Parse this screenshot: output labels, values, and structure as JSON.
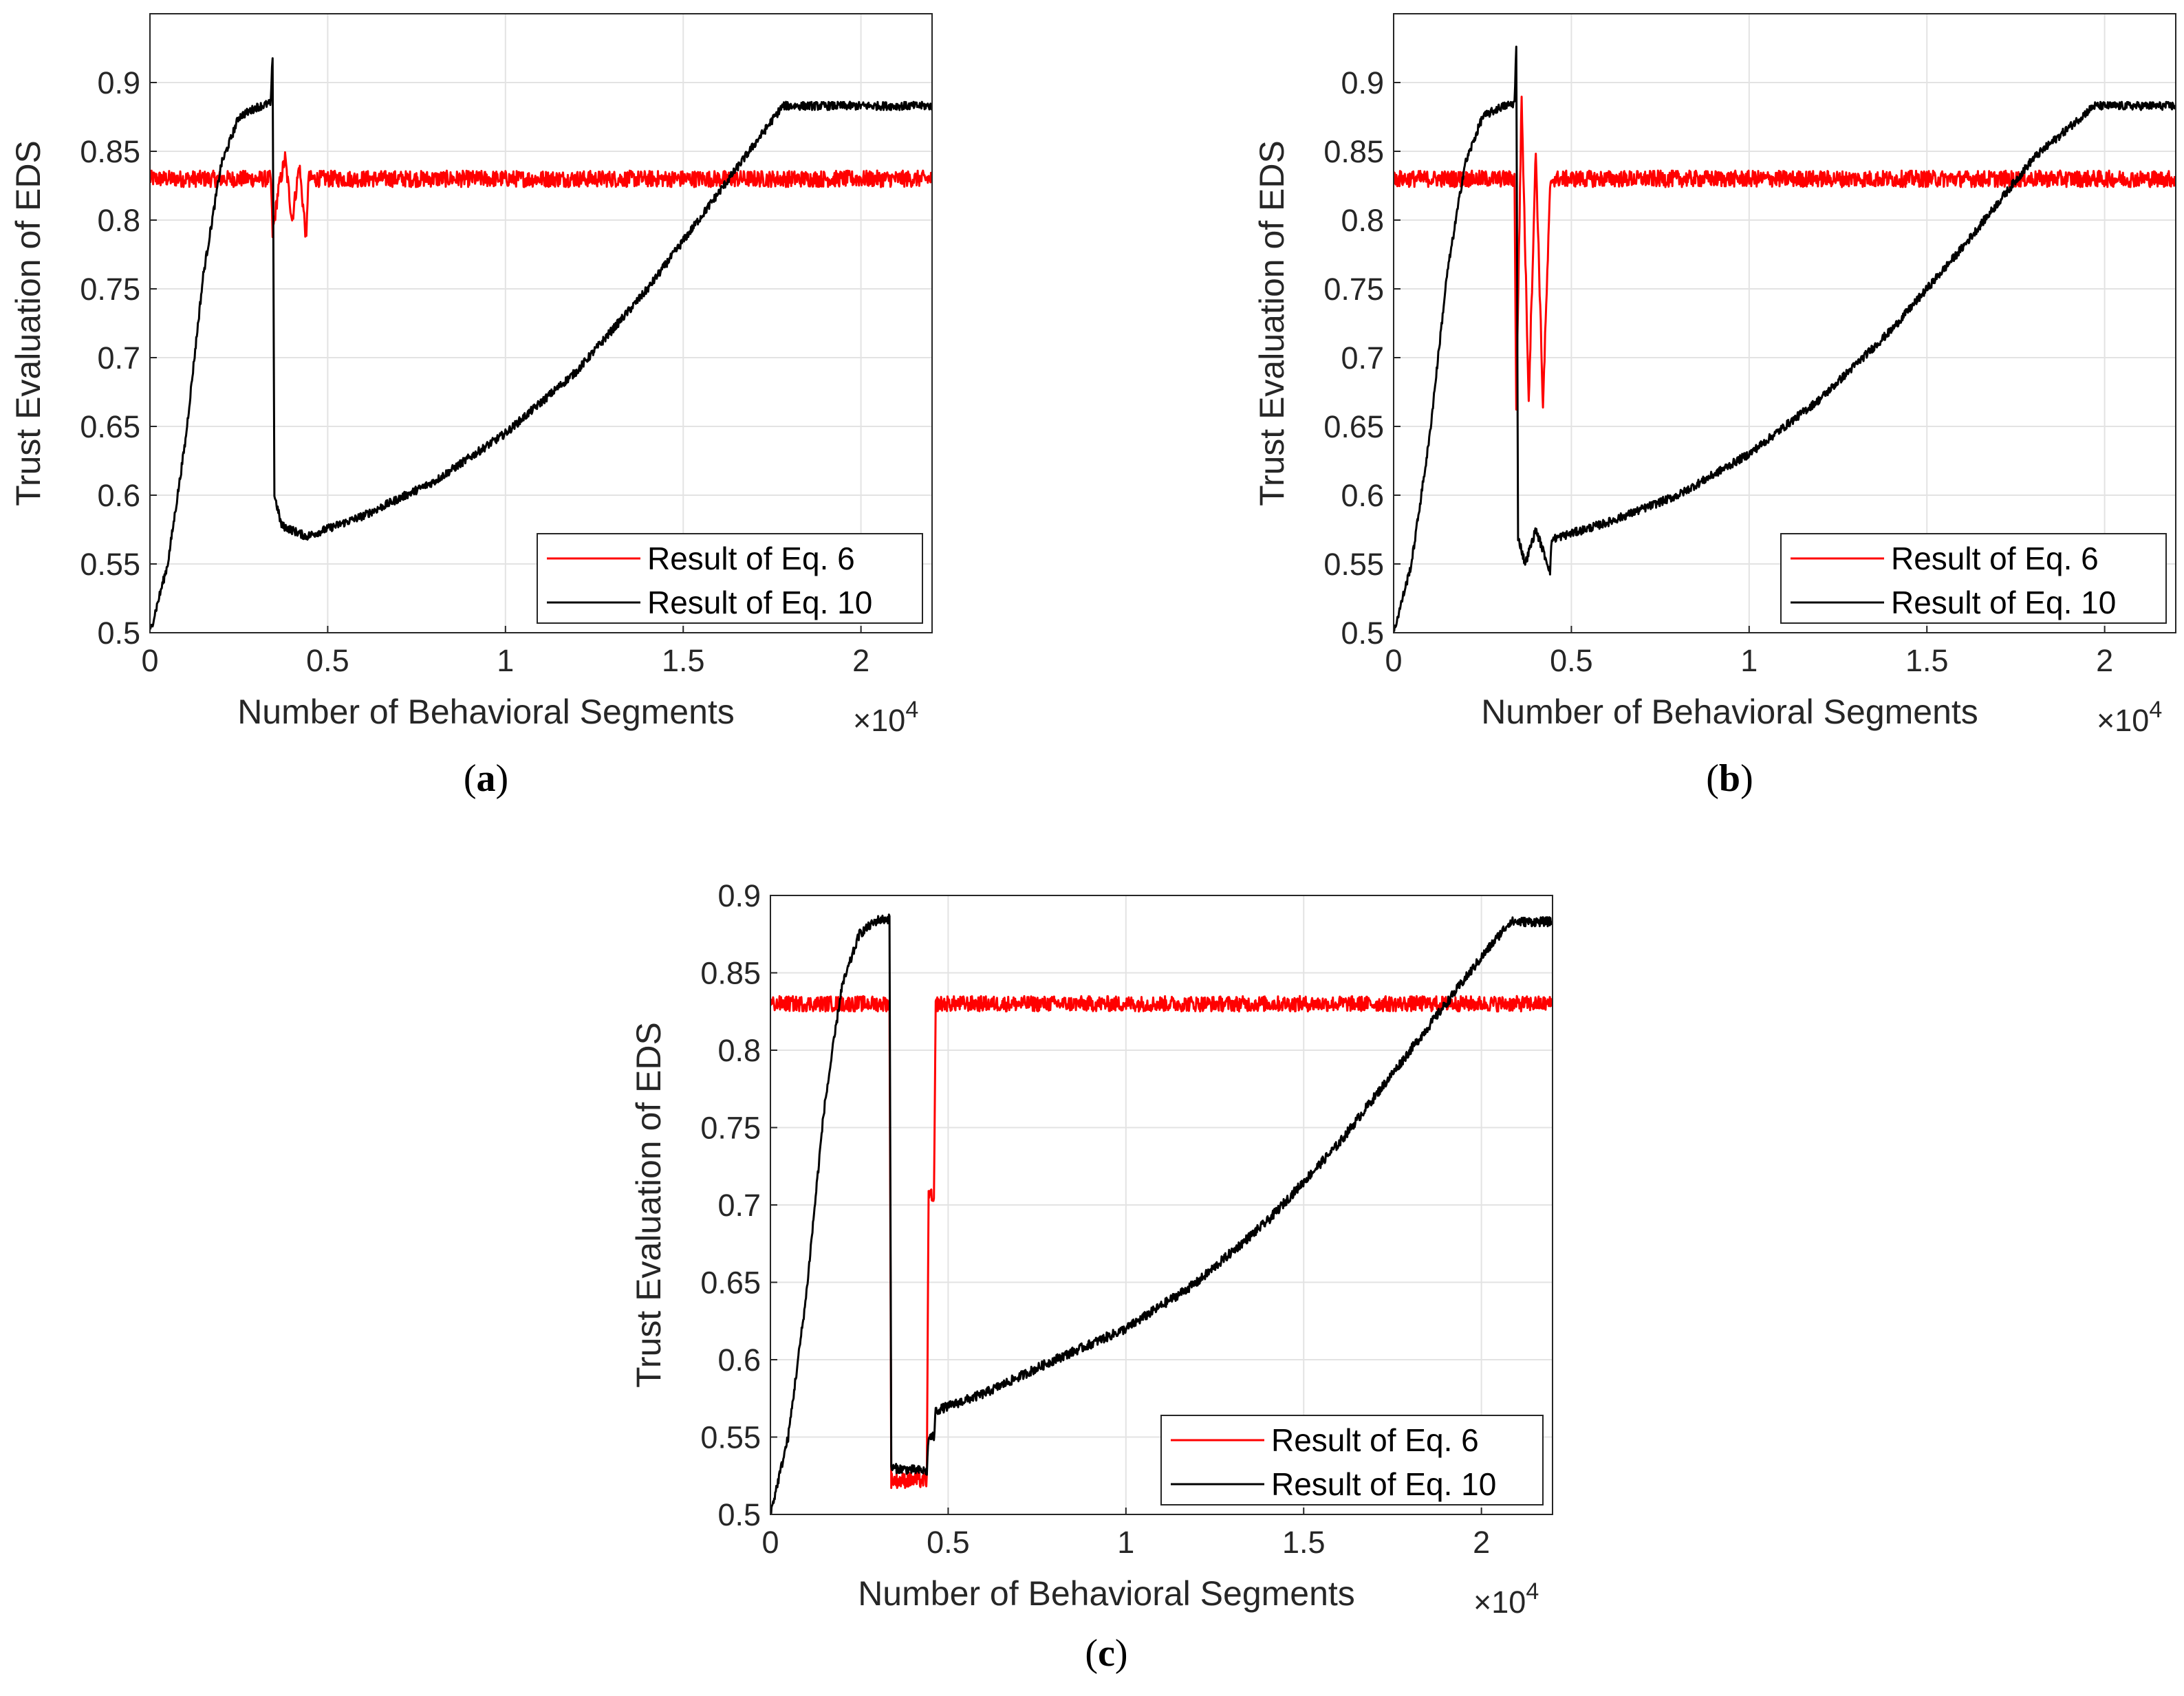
{
  "colors": {
    "eq6": "#ff0000",
    "eq10": "#000000",
    "grid": "#e3e3e3",
    "axis": "#262626"
  },
  "chart_data": [
    {
      "type": "line",
      "caption": "a",
      "xlabel": "Number of Behavioral Segments",
      "x_multiplier": "×10",
      "x_multiplier_exp": "4",
      "ylabel": "Trust Evaluation of EDS",
      "xlim": [
        0,
        2.2
      ],
      "ylim": [
        0.5,
        0.95
      ],
      "xticks": [
        "0",
        "0.5",
        "1",
        "1.5",
        "2"
      ],
      "yticks": [
        "0.5",
        "0.55",
        "0.6",
        "0.65",
        "0.7",
        "0.75",
        "0.8",
        "0.85",
        "0.9"
      ],
      "legend_position": "bottom-right",
      "series": [
        {
          "name": "Result of Eq. 6",
          "color": "#ff0000",
          "noise": 0.006,
          "points": [
            [
              0,
              0.83
            ],
            [
              0.34,
              0.83
            ],
            [
              0.345,
              0.79
            ],
            [
              0.36,
              0.82
            ],
            [
              0.38,
              0.845
            ],
            [
              0.4,
              0.8
            ],
            [
              0.42,
              0.84
            ],
            [
              0.44,
              0.785
            ],
            [
              0.445,
              0.83
            ],
            [
              2.2,
              0.83
            ]
          ]
        },
        {
          "name": "Result of Eq. 10",
          "color": "#000000",
          "noise": 0.003,
          "points": [
            [
              0,
              0.5
            ],
            [
              0.05,
              0.55
            ],
            [
              0.1,
              0.64
            ],
            [
              0.15,
              0.76
            ],
            [
              0.2,
              0.84
            ],
            [
              0.25,
              0.875
            ],
            [
              0.3,
              0.882
            ],
            [
              0.34,
              0.885
            ],
            [
              0.345,
              0.92
            ],
            [
              0.35,
              0.6
            ],
            [
              0.37,
              0.578
            ],
            [
              0.44,
              0.57
            ],
            [
              0.6,
              0.585
            ],
            [
              0.8,
              0.61
            ],
            [
              1.0,
              0.645
            ],
            [
              1.2,
              0.69
            ],
            [
              1.4,
              0.75
            ],
            [
              1.6,
              0.82
            ],
            [
              1.78,
              0.883
            ],
            [
              2.2,
              0.883
            ]
          ]
        }
      ]
    },
    {
      "type": "line",
      "caption": "b",
      "xlabel": "Number of Behavioral Segments",
      "x_multiplier": "×10",
      "x_multiplier_exp": "4",
      "ylabel": "Trust Evaluation of EDS",
      "xlim": [
        0,
        2.2
      ],
      "ylim": [
        0.5,
        0.95
      ],
      "xticks": [
        "0",
        "0.5",
        "1",
        "1.5",
        "2"
      ],
      "yticks": [
        "0.5",
        "0.55",
        "0.6",
        "0.65",
        "0.7",
        "0.75",
        "0.8",
        "0.85",
        "0.9"
      ],
      "legend_position": "bottom-right",
      "series": [
        {
          "name": "Result of Eq. 6",
          "color": "#ff0000",
          "noise": 0.006,
          "points": [
            [
              0,
              0.83
            ],
            [
              0.34,
              0.83
            ],
            [
              0.345,
              0.665
            ],
            [
              0.36,
              0.89
            ],
            [
              0.38,
              0.67
            ],
            [
              0.4,
              0.85
            ],
            [
              0.42,
              0.665
            ],
            [
              0.44,
              0.82
            ],
            [
              0.445,
              0.83
            ],
            [
              2.2,
              0.83
            ]
          ]
        },
        {
          "name": "Result of Eq. 10",
          "color": "#000000",
          "noise": 0.003,
          "points": [
            [
              0,
              0.5
            ],
            [
              0.05,
              0.55
            ],
            [
              0.1,
              0.64
            ],
            [
              0.15,
              0.76
            ],
            [
              0.2,
              0.84
            ],
            [
              0.25,
              0.875
            ],
            [
              0.3,
              0.882
            ],
            [
              0.34,
              0.885
            ],
            [
              0.345,
              0.925
            ],
            [
              0.35,
              0.57
            ],
            [
              0.37,
              0.55
            ],
            [
              0.4,
              0.575
            ],
            [
              0.44,
              0.545
            ],
            [
              0.445,
              0.568
            ],
            [
              0.6,
              0.58
            ],
            [
              0.8,
              0.6
            ],
            [
              1.0,
              0.63
            ],
            [
              1.2,
              0.67
            ],
            [
              1.4,
              0.72
            ],
            [
              1.6,
              0.78
            ],
            [
              1.8,
              0.845
            ],
            [
              1.97,
              0.883
            ],
            [
              2.2,
              0.883
            ]
          ]
        }
      ]
    },
    {
      "type": "line",
      "caption": "c",
      "xlabel": "Number of Behavioral Segments",
      "x_multiplier": "×10",
      "x_multiplier_exp": "4",
      "ylabel": "Trust Evaluation of EDS",
      "xlim": [
        0,
        2.2
      ],
      "ylim": [
        0.5,
        0.9
      ],
      "xticks": [
        "0",
        "0.5",
        "1",
        "1.5",
        "2"
      ],
      "yticks": [
        "0.5",
        "0.55",
        "0.6",
        "0.65",
        "0.7",
        "0.75",
        "0.8",
        "0.85",
        "0.9"
      ],
      "legend_position": "bottom-right",
      "series": [
        {
          "name": "Result of Eq. 6",
          "color": "#ff0000",
          "noise": 0.005,
          "points": [
            [
              0,
              0.83
            ],
            [
              0.335,
              0.83
            ],
            [
              0.34,
              0.522
            ],
            [
              0.44,
              0.522
            ],
            [
              0.445,
              0.71
            ],
            [
              0.46,
              0.7
            ],
            [
              0.465,
              0.83
            ],
            [
              2.2,
              0.83
            ]
          ]
        },
        {
          "name": "Result of Eq. 10",
          "color": "#000000",
          "noise": 0.003,
          "points": [
            [
              0,
              0.5
            ],
            [
              0.05,
              0.55
            ],
            [
              0.1,
              0.64
            ],
            [
              0.15,
              0.76
            ],
            [
              0.2,
              0.84
            ],
            [
              0.25,
              0.875
            ],
            [
              0.3,
              0.884
            ],
            [
              0.335,
              0.885
            ],
            [
              0.34,
              0.53
            ],
            [
              0.44,
              0.528
            ],
            [
              0.445,
              0.55
            ],
            [
              0.46,
              0.55
            ],
            [
              0.465,
              0.567
            ],
            [
              0.6,
              0.578
            ],
            [
              0.8,
              0.6
            ],
            [
              1.0,
              0.62
            ],
            [
              1.2,
              0.65
            ],
            [
              1.4,
              0.69
            ],
            [
              1.6,
              0.74
            ],
            [
              1.8,
              0.8
            ],
            [
              2.0,
              0.86
            ],
            [
              2.08,
              0.883
            ],
            [
              2.2,
              0.883
            ]
          ]
        }
      ]
    }
  ]
}
